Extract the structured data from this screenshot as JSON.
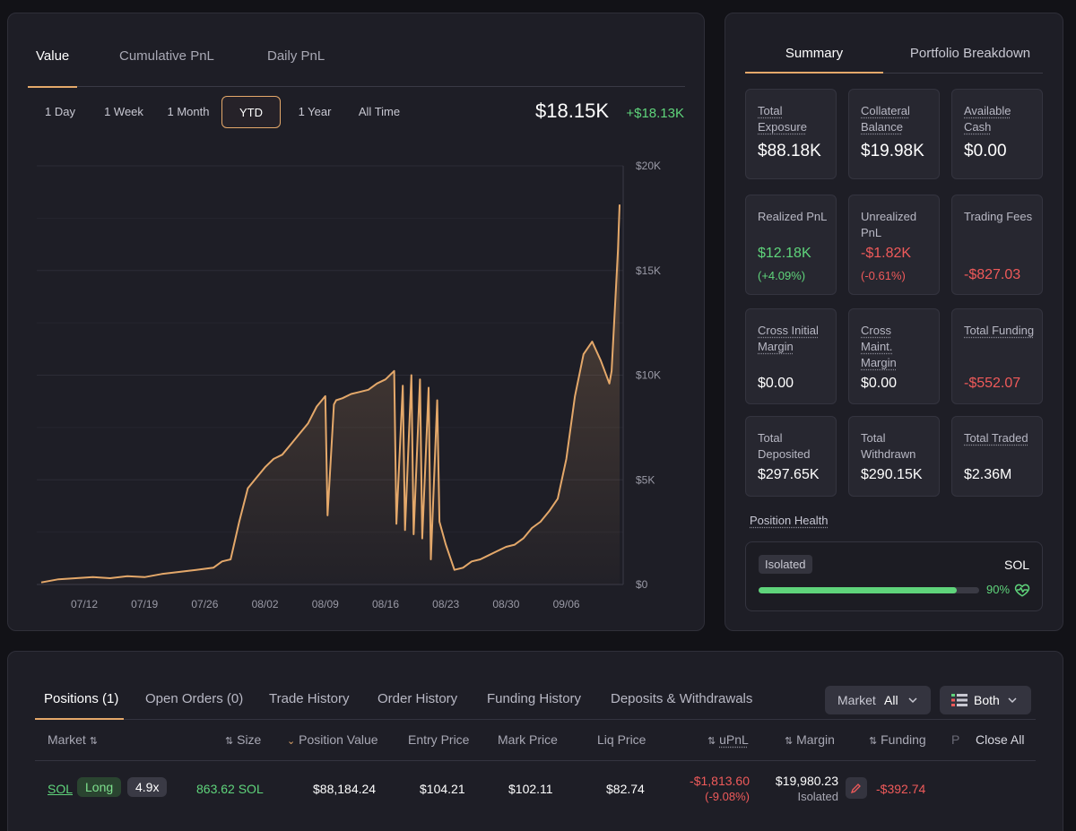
{
  "chart_panel": {
    "tabs": [
      "Value",
      "Cumulative PnL",
      "Daily PnL"
    ],
    "ranges": [
      "1 Day",
      "1 Week",
      "1 Month",
      "YTD",
      "1 Year",
      "All Time"
    ],
    "active_range": "YTD",
    "current_value": "$18.15K",
    "change": "+$18.13K",
    "accent_color": "#e4a86a",
    "positive_color": "#5fd47b"
  },
  "chart_data": {
    "type": "area",
    "x_ticks": [
      "07/12",
      "07/19",
      "07/26",
      "08/02",
      "08/09",
      "08/16",
      "08/23",
      "08/30",
      "09/06"
    ],
    "y_ticks": [
      "$20K",
      "$15K",
      "$10K",
      "$5K",
      "$0"
    ],
    "ylim": [
      0,
      20000
    ],
    "grid": true,
    "series": [
      {
        "x": [
          "07/07",
          "07/09",
          "07/11",
          "07/13",
          "07/15",
          "07/17",
          "07/19",
          "07/21",
          "07/23",
          "07/25",
          "07/26",
          "07/27",
          "07/28",
          "07/29",
          "07/30",
          "07/31",
          "08/01",
          "08/02",
          "08/03",
          "08/04",
          "08/05",
          "08/06",
          "08/07",
          "08/08",
          "08/09",
          "08/09",
          "08/10",
          "08/10",
          "08/11",
          "08/12",
          "08/13",
          "08/14",
          "08/15",
          "08/16",
          "08/17",
          "08/17",
          "08/18",
          "08/18",
          "08/19",
          "08/19",
          "08/20",
          "08/20",
          "08/21",
          "08/21",
          "08/22",
          "08/22",
          "08/23",
          "08/24",
          "08/25",
          "08/26",
          "08/27",
          "08/28",
          "08/29",
          "08/30",
          "08/31",
          "09/01",
          "09/02",
          "09/03",
          "09/04",
          "09/05",
          "09/06",
          "09/07",
          "09/08",
          "09/09",
          "09/10",
          "09/11",
          "09/11",
          "09/12",
          "09/12"
        ],
        "y": [
          100,
          250,
          300,
          350,
          300,
          400,
          350,
          500,
          600,
          700,
          750,
          800,
          1100,
          1200,
          3000,
          4600,
          5100,
          5600,
          6000,
          6200,
          6700,
          7200,
          7700,
          8500,
          9000,
          3300,
          8600,
          8800,
          8900,
          9100,
          9200,
          9300,
          9600,
          9800,
          10200,
          2900,
          9500,
          2600,
          10000,
          2400,
          9800,
          2200,
          9400,
          1200,
          8800,
          3000,
          1900,
          700,
          800,
          1100,
          1200,
          1400,
          1600,
          1800,
          1900,
          2200,
          2700,
          3000,
          3500,
          4100,
          6000,
          9000,
          11000,
          11600,
          10700,
          9600,
          10200,
          16000,
          18150
        ]
      }
    ]
  },
  "summary": {
    "tabs": [
      "Summary",
      "Portfolio Breakdown"
    ],
    "cards": [
      {
        "label": "Total Exposure",
        "value": "$88.18K"
      },
      {
        "label": "Collateral Balance",
        "value": "$19.98K"
      },
      {
        "label": "Available Cash",
        "value": "$0.00"
      },
      {
        "label": "Realized PnL",
        "value": "$12.18K",
        "sub": "(+4.09%)"
      },
      {
        "label": "Unrealized PnL",
        "value": "-$1.82K",
        "sub": "(-0.61%)"
      },
      {
        "label": "Trading Fees",
        "value": "-$827.03"
      },
      {
        "label": "Cross Initial Margin",
        "value": "$0.00"
      },
      {
        "label": "Cross Maint. Margin",
        "value": "$0.00"
      },
      {
        "label": "Total Funding",
        "value": "-$552.07"
      },
      {
        "label": "Total Deposited",
        "value": "$297.65K"
      },
      {
        "label": "Total Withdrawn",
        "value": "$290.15K"
      },
      {
        "label": "Total Traded",
        "value": "$2.36M"
      }
    ],
    "position_health": {
      "title": "Position Health",
      "mode": "Isolated",
      "market": "SOL",
      "percent_label": "90%",
      "percent": 0.9
    }
  },
  "positions": {
    "tabs": [
      "Positions (1)",
      "Open Orders (0)",
      "Trade History",
      "Order History",
      "Funding History",
      "Deposits & Withdrawals"
    ],
    "market_filter": {
      "label": "Market",
      "value": "All"
    },
    "side_filter": "Both",
    "columns": [
      "Market",
      "Size",
      "Position Value",
      "Entry Price",
      "Mark Price",
      "Liq Price",
      "uPnL",
      "Margin",
      "Funding",
      "P",
      "Close All"
    ],
    "rows": [
      {
        "market": "SOL",
        "side": "Long",
        "leverage": "4.9x",
        "size": "863.62 SOL",
        "position_value": "$88,184.24",
        "entry_price": "$104.21",
        "mark_price": "$102.11",
        "liq_price": "$82.74",
        "upnl": "-$1,813.60",
        "upnl_pct": "(-9.08%)",
        "margin": "$19,980.23",
        "margin_mode": "Isolated",
        "funding": "-$392.74"
      }
    ]
  }
}
